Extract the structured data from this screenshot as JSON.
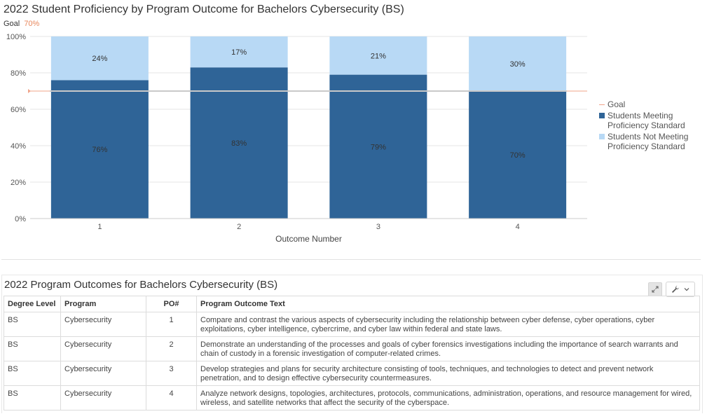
{
  "chart_data": {
    "type": "bar",
    "stacked": true,
    "title": "2022 Student Proficiency by Program Outcome for Bachelors Cybersecurity (BS)",
    "goal_label": "Goal",
    "goal_value_label": "70%",
    "goal": 70,
    "categories": [
      "1",
      "2",
      "3",
      "4"
    ],
    "xlabel": "Outcome Number",
    "ylabel": "",
    "ylim": [
      0,
      100
    ],
    "yticks": [
      "0%",
      "20%",
      "40%",
      "60%",
      "80%",
      "100%"
    ],
    "grid": true,
    "legend_position": "right",
    "series": [
      {
        "name": "Students Meeting Proficiency Standard",
        "values": [
          76,
          83,
          79,
          70
        ],
        "labels": [
          "76%",
          "83%",
          "79%",
          "70%"
        ],
        "color": "#2f6497"
      },
      {
        "name": "Students Not Meeting Proficiency Standard",
        "values": [
          24,
          17,
          21,
          30
        ],
        "labels": [
          "24%",
          "17%",
          "21%",
          "30%"
        ],
        "color": "#b8d9f5"
      }
    ],
    "legend": [
      "Goal",
      "Students Meeting Proficiency Standard",
      "Students Not Meeting Proficiency Standard"
    ],
    "goal_color": "#f0a48a"
  },
  "table": {
    "title": "2022 Program Outcomes for Bachelors Cybersecurity (BS)",
    "columns": [
      "Degree Level",
      "Program",
      "PO#",
      "Program Outcome Text"
    ],
    "rows": [
      [
        "BS",
        "Cybersecurity",
        "1",
        "Compare and contrast the various aspects of cybersecurity including the relationship between cyber defense, cyber operations, cyber exploitations, cyber intelligence, cybercrime, and cyber law within federal and state laws."
      ],
      [
        "BS",
        "Cybersecurity",
        "2",
        "Demonstrate an understanding of the processes and goals of cyber forensics investigations including the importance of search warrants and chain of custody in a forensic investigation of computer-related crimes."
      ],
      [
        "BS",
        "Cybersecurity",
        "3",
        "Develop strategies and plans for security architecture consisting of tools, techniques, and technologies to detect and prevent network penetration, and to design effective cybersecurity countermeasures."
      ],
      [
        "BS",
        "Cybersecurity",
        "4",
        "Analyze network designs, topologies, architectures, protocols, communications, administration, operations, and resource management for wired, wireless, and satellite networks that affect the security of the cyberspace."
      ]
    ]
  },
  "icons": {
    "expand": "expand-icon",
    "wrench": "wrench-icon",
    "dropdown": "chevron-down-icon"
  }
}
